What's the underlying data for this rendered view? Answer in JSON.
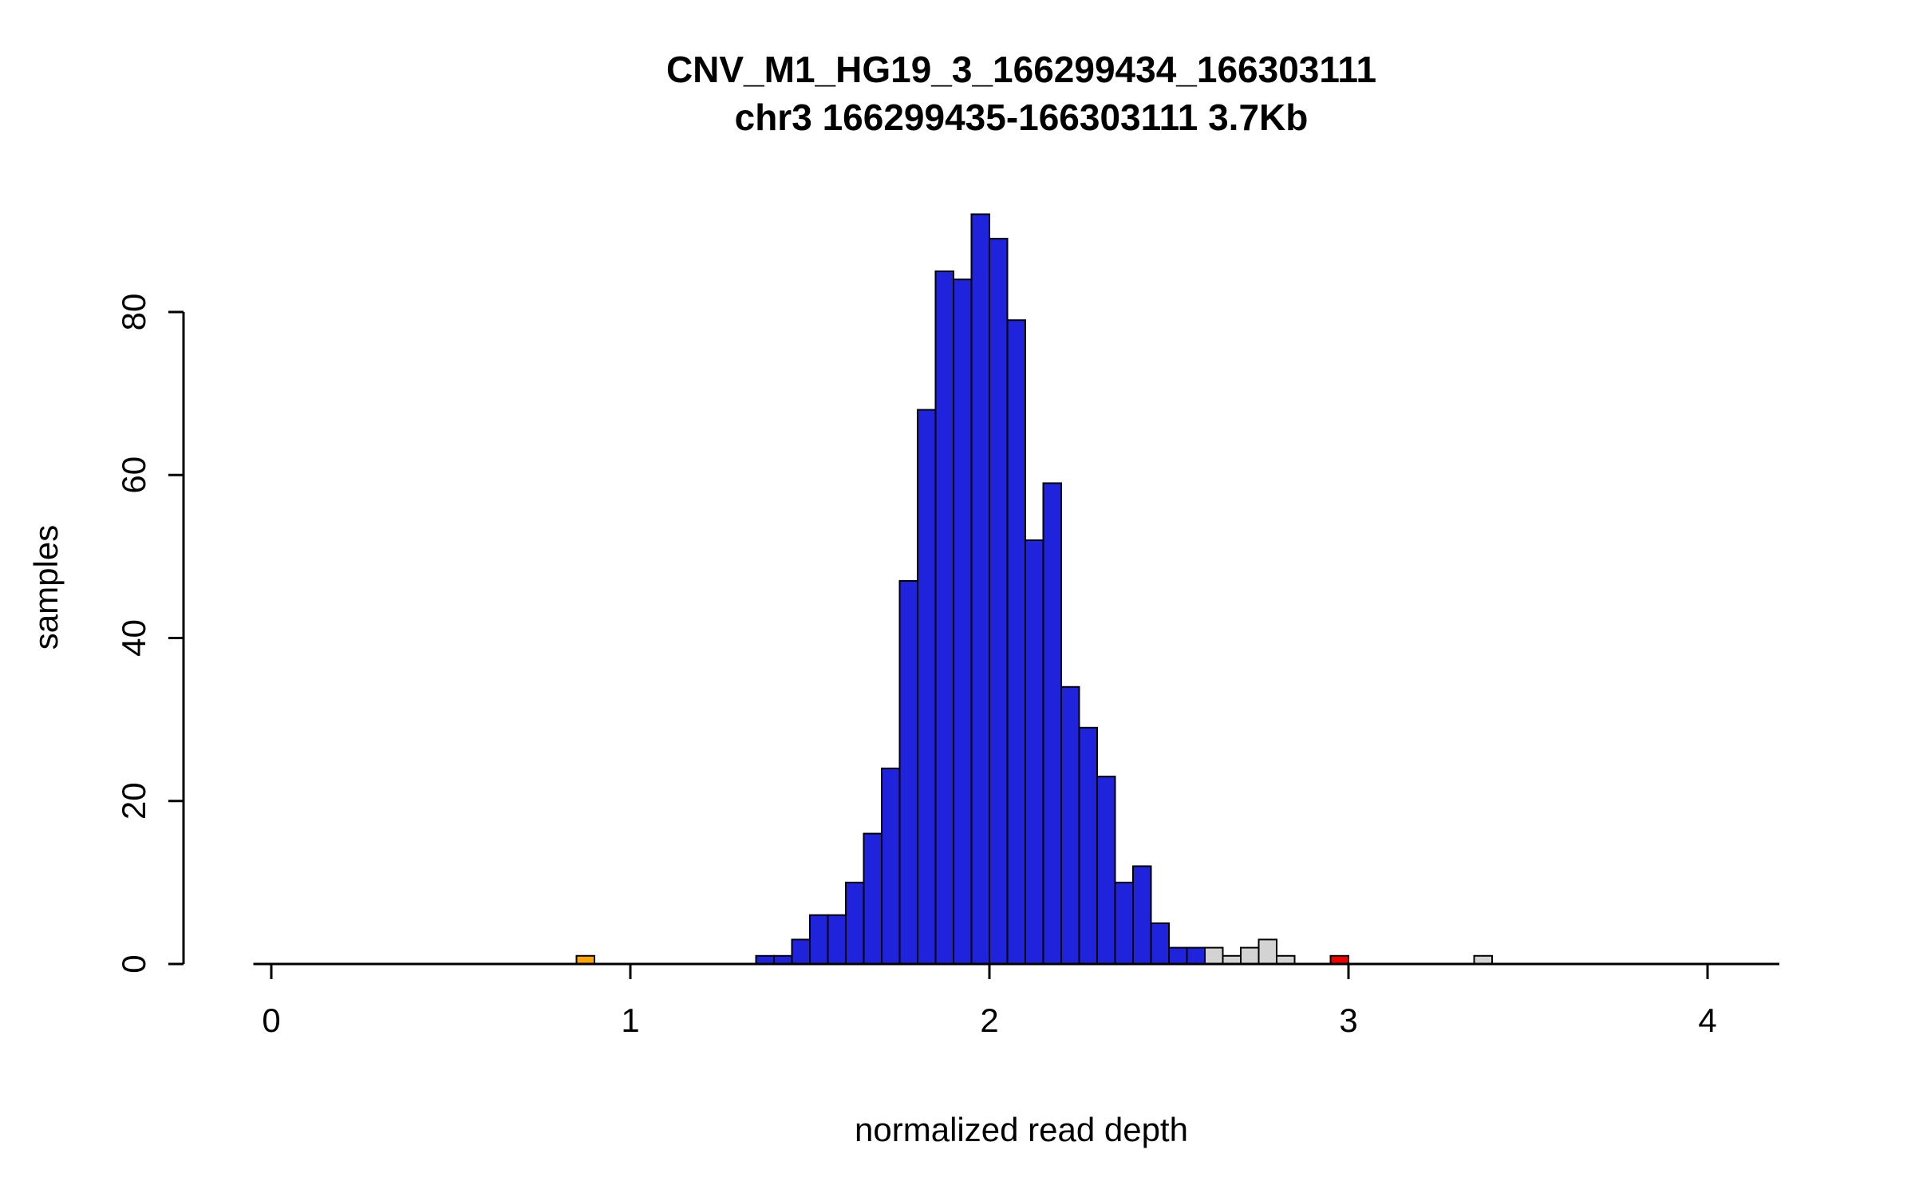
{
  "chart_data": {
    "type": "bar",
    "subtype": "histogram",
    "title_line1": "CNV_M1_HG19_3_166299434_166303111",
    "title_line2": "chr3 166299435-166303111 3.7Kb",
    "xlabel": "normalized read depth",
    "ylabel": "samples",
    "x_ticks": [
      0,
      1,
      2,
      3,
      4
    ],
    "y_ticks": [
      0,
      20,
      40,
      60,
      80
    ],
    "xlim": [
      -0.05,
      4.2
    ],
    "ylim": [
      0,
      95
    ],
    "bin_width": 0.05,
    "grid": "off",
    "legend": "none",
    "bars": [
      {
        "x": 0.85,
        "height": 1,
        "color": "orange"
      },
      {
        "x": 1.35,
        "height": 1,
        "color": "blue"
      },
      {
        "x": 1.4,
        "height": 1,
        "color": "blue"
      },
      {
        "x": 1.45,
        "height": 3,
        "color": "blue"
      },
      {
        "x": 1.5,
        "height": 6,
        "color": "blue"
      },
      {
        "x": 1.55,
        "height": 6,
        "color": "blue"
      },
      {
        "x": 1.6,
        "height": 10,
        "color": "blue"
      },
      {
        "x": 1.65,
        "height": 16,
        "color": "blue"
      },
      {
        "x": 1.7,
        "height": 24,
        "color": "blue"
      },
      {
        "x": 1.75,
        "height": 47,
        "color": "blue"
      },
      {
        "x": 1.8,
        "height": 68,
        "color": "blue"
      },
      {
        "x": 1.85,
        "height": 85,
        "color": "blue"
      },
      {
        "x": 1.9,
        "height": 84,
        "color": "blue"
      },
      {
        "x": 1.95,
        "height": 92,
        "color": "blue"
      },
      {
        "x": 2.0,
        "height": 89,
        "color": "blue"
      },
      {
        "x": 2.05,
        "height": 79,
        "color": "blue"
      },
      {
        "x": 2.1,
        "height": 52,
        "color": "blue"
      },
      {
        "x": 2.15,
        "height": 59,
        "color": "blue"
      },
      {
        "x": 2.2,
        "height": 34,
        "color": "blue"
      },
      {
        "x": 2.25,
        "height": 29,
        "color": "blue"
      },
      {
        "x": 2.3,
        "height": 23,
        "color": "blue"
      },
      {
        "x": 2.35,
        "height": 10,
        "color": "blue"
      },
      {
        "x": 2.4,
        "height": 12,
        "color": "blue"
      },
      {
        "x": 2.45,
        "height": 5,
        "color": "blue"
      },
      {
        "x": 2.5,
        "height": 2,
        "color": "blue"
      },
      {
        "x": 2.55,
        "height": 2,
        "color": "blue"
      },
      {
        "x": 2.6,
        "height": 2,
        "color": "gray"
      },
      {
        "x": 2.65,
        "height": 1,
        "color": "gray"
      },
      {
        "x": 2.7,
        "height": 2,
        "color": "gray"
      },
      {
        "x": 2.75,
        "height": 3,
        "color": "gray"
      },
      {
        "x": 2.8,
        "height": 1,
        "color": "gray"
      },
      {
        "x": 2.95,
        "height": 1,
        "color": "red"
      },
      {
        "x": 3.35,
        "height": 1,
        "color": "gray"
      }
    ],
    "colors": {
      "blue": "#1F23DC",
      "orange": "#FFA500",
      "gray": "#D3D3D3",
      "red": "#EE0000",
      "axis": "#000000",
      "background": "#FFFFFF"
    }
  }
}
